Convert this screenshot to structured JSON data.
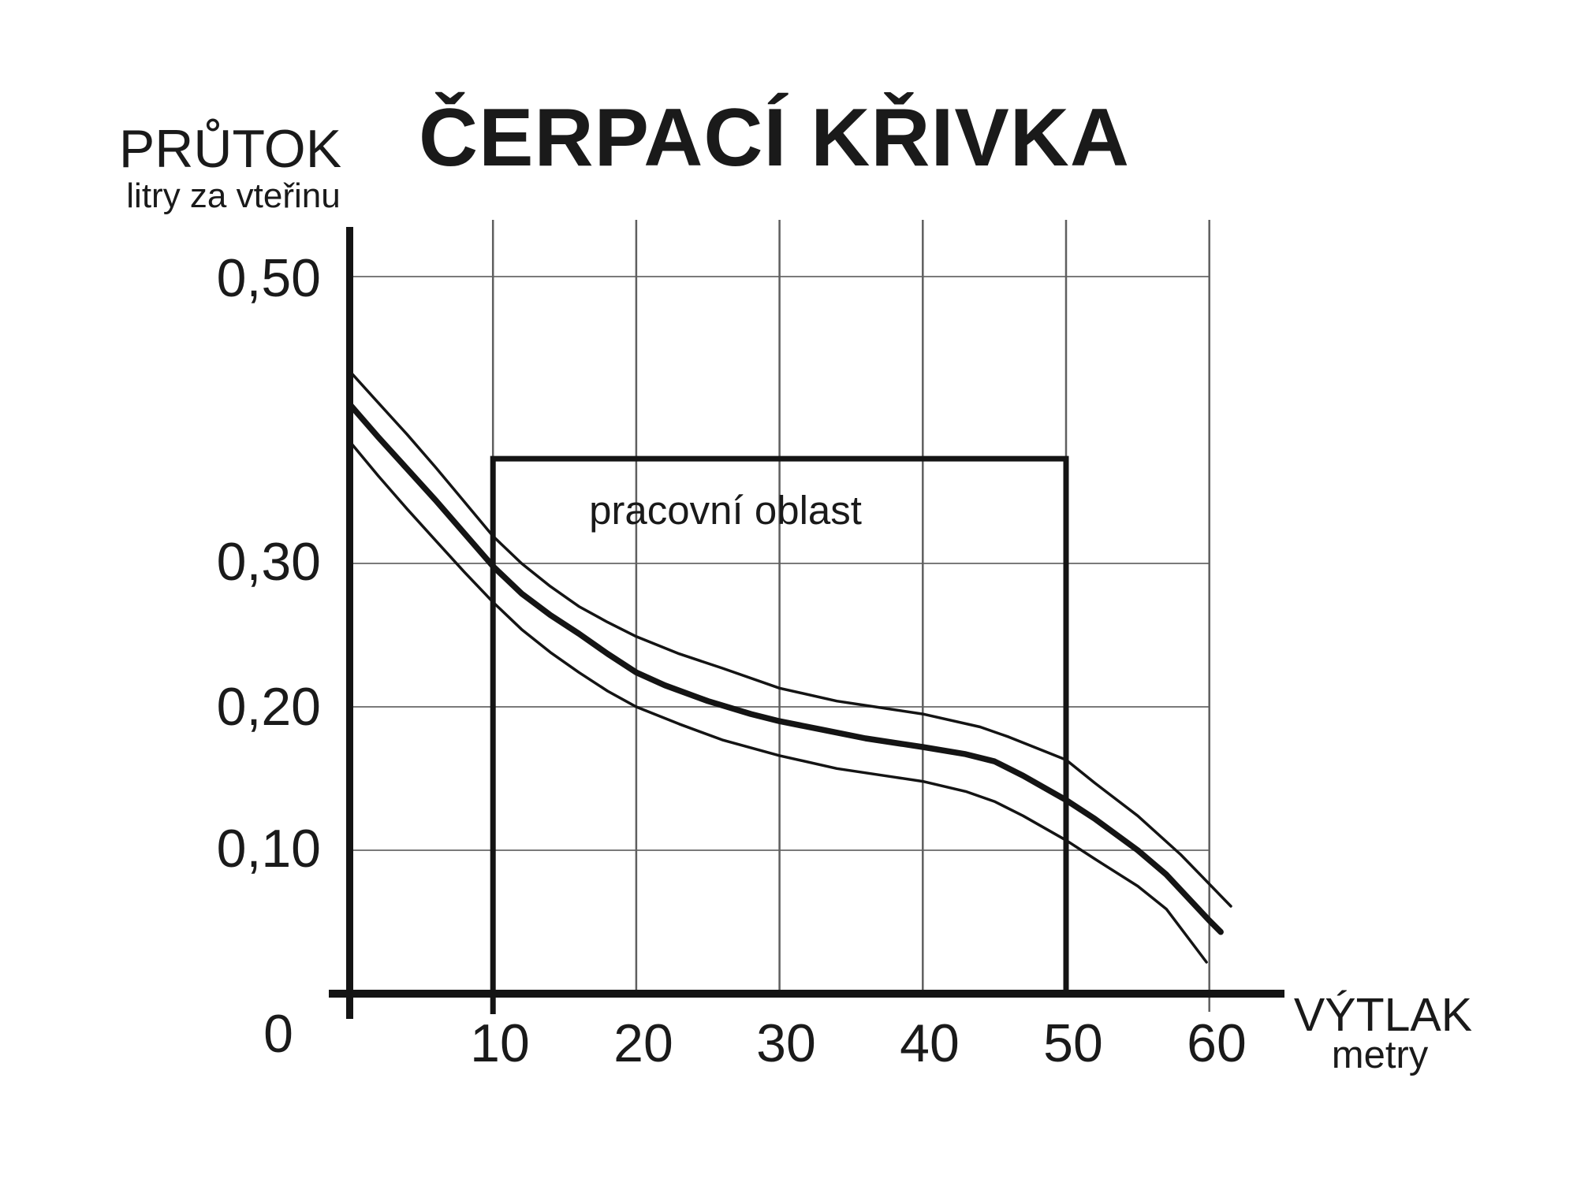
{
  "title": "ČERPACÍ KŘIVKA",
  "y_axis": {
    "title": "PRŮTOK",
    "subtitle": "litry za vteřinu",
    "tick_labels": {
      "v050": "0,50",
      "v030": "0,30",
      "v020": "0,20",
      "v010": "0,10"
    },
    "origin_label": "0"
  },
  "x_axis": {
    "title": "VÝTLAK",
    "subtitle": "metry",
    "tick_labels": {
      "v10": "10",
      "v20": "20",
      "v30": "30",
      "v40": "40",
      "v50": "50",
      "v60": "60"
    }
  },
  "working_area": {
    "label": "pracovní oblast"
  },
  "colors": {
    "ink": "#141414",
    "grid_h": "#7a7a7a",
    "grid_v": "#5f5f5f",
    "background": "#ffffff"
  },
  "chart_data": {
    "type": "line",
    "title": "ČERPACÍ KŘIVKA",
    "xlabel": "VÝTLAK (metry)",
    "ylabel": "PRŮTOK (litry za vteřinu)",
    "xlim": [
      0,
      65.5
    ],
    "ylim": [
      0,
      0.535
    ],
    "x_ticks": [
      10,
      20,
      30,
      40,
      50,
      60
    ],
    "y_ticks": [
      0.1,
      0.2,
      0.3,
      0.5
    ],
    "grid": true,
    "legend": false,
    "series": [
      {
        "name": "upper-tolerance",
        "style": "thin",
        "points": [
          [
            0,
            0.434
          ],
          [
            2,
            0.412
          ],
          [
            4,
            0.39
          ],
          [
            6,
            0.367
          ],
          [
            8,
            0.343
          ],
          [
            10,
            0.319
          ],
          [
            12,
            0.3
          ],
          [
            14,
            0.284
          ],
          [
            16,
            0.27
          ],
          [
            18,
            0.259
          ],
          [
            20,
            0.249
          ],
          [
            23,
            0.237
          ],
          [
            26,
            0.227
          ],
          [
            30,
            0.213
          ],
          [
            34,
            0.204
          ],
          [
            38,
            0.198
          ],
          [
            40,
            0.195
          ],
          [
            44,
            0.186
          ],
          [
            46,
            0.179
          ],
          [
            48,
            0.171
          ],
          [
            50,
            0.163
          ],
          [
            52,
            0.147
          ],
          [
            55,
            0.124
          ],
          [
            58,
            0.097
          ],
          [
            61.5,
            0.061
          ]
        ]
      },
      {
        "name": "main-curve",
        "style": "thick",
        "points": [
          [
            0,
            0.411
          ],
          [
            2,
            0.388
          ],
          [
            4,
            0.366
          ],
          [
            6,
            0.344
          ],
          [
            8,
            0.321
          ],
          [
            10,
            0.298
          ],
          [
            12,
            0.279
          ],
          [
            14,
            0.264
          ],
          [
            16,
            0.251
          ],
          [
            18,
            0.237
          ],
          [
            20,
            0.224
          ],
          [
            22,
            0.215
          ],
          [
            25,
            0.204
          ],
          [
            28,
            0.195
          ],
          [
            30,
            0.19
          ],
          [
            33,
            0.184
          ],
          [
            36,
            0.178
          ],
          [
            40,
            0.172
          ],
          [
            43,
            0.167
          ],
          [
            45,
            0.162
          ],
          [
            47,
            0.152
          ],
          [
            50,
            0.135
          ],
          [
            52,
            0.122
          ],
          [
            55,
            0.1
          ],
          [
            57,
            0.083
          ],
          [
            60,
            0.051
          ],
          [
            60.8,
            0.043
          ]
        ]
      },
      {
        "name": "lower-tolerance",
        "style": "thin",
        "points": [
          [
            0,
            0.385
          ],
          [
            2,
            0.361
          ],
          [
            4,
            0.338
          ],
          [
            6,
            0.316
          ],
          [
            8,
            0.294
          ],
          [
            10,
            0.273
          ],
          [
            12,
            0.254
          ],
          [
            14,
            0.238
          ],
          [
            16,
            0.224
          ],
          [
            18,
            0.211
          ],
          [
            20,
            0.2
          ],
          [
            23,
            0.188
          ],
          [
            26,
            0.177
          ],
          [
            30,
            0.166
          ],
          [
            34,
            0.157
          ],
          [
            38,
            0.151
          ],
          [
            40,
            0.148
          ],
          [
            43,
            0.141
          ],
          [
            45,
            0.134
          ],
          [
            47,
            0.124
          ],
          [
            50,
            0.107
          ],
          [
            52,
            0.094
          ],
          [
            55,
            0.075
          ],
          [
            57,
            0.059
          ],
          [
            59.8,
            0.022
          ]
        ]
      }
    ],
    "annotations": [
      {
        "type": "rect",
        "label": "pracovní oblast",
        "x_from": 10,
        "x_to": 50,
        "y_from": 0,
        "y_to": 0.373
      }
    ]
  }
}
